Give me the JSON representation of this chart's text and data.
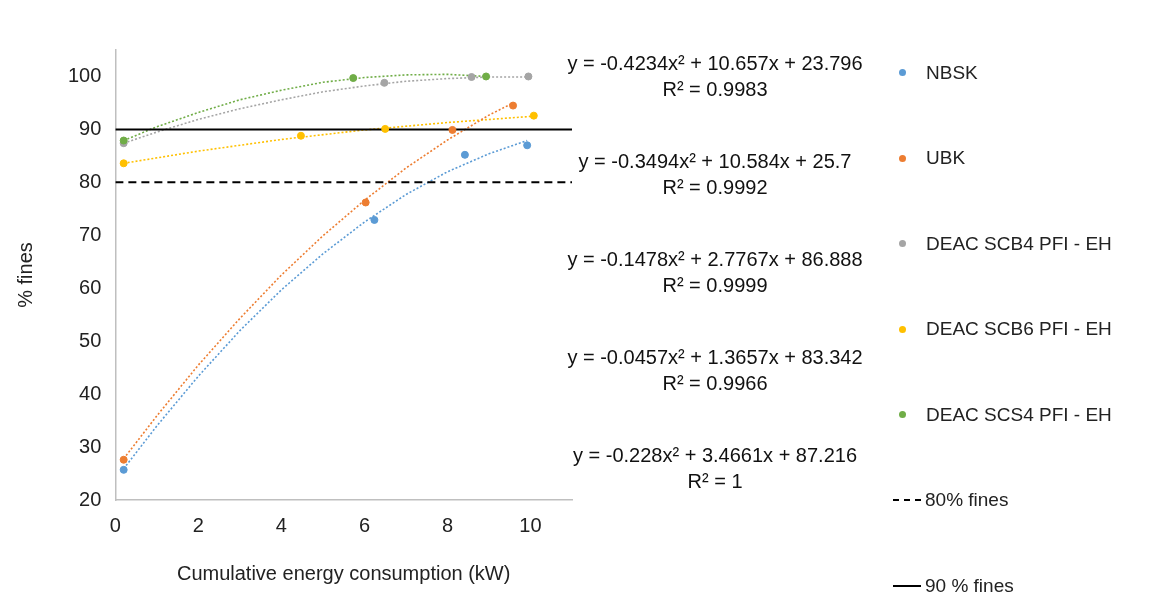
{
  "chart_data": {
    "type": "scatter",
    "xlabel": "Cumulative energy consumption (kW)",
    "ylabel": "% fines",
    "xlim": [
      0,
      11
    ],
    "xticks": [
      0,
      2,
      4,
      6,
      8,
      10
    ],
    "ylim": [
      20,
      105
    ],
    "yticks": [
      20,
      30,
      40,
      50,
      60,
      70,
      80,
      90,
      100
    ],
    "grid": false,
    "legend": "right",
    "marker": "circle",
    "series": [
      {
        "name": "NBSK",
        "color": "#5b9bd5",
        "x": [
          0.2,
          6.24,
          8.42,
          9.92
        ],
        "values": [
          25.7,
          72.9,
          85.2,
          87.0
        ]
      },
      {
        "name": "UBK",
        "color": "#ed7d31",
        "x": [
          0.2,
          6.03,
          8.12,
          9.58
        ],
        "values": [
          27.6,
          76.2,
          89.9,
          94.5
        ]
      },
      {
        "name": "DEAC SCB4 PFI - EH",
        "color": "#a5a5a5",
        "x": [
          0.2,
          6.48,
          8.58,
          9.95
        ],
        "values": [
          87.4,
          98.8,
          99.9,
          100
        ]
      },
      {
        "name": "DEAC SCB6 PFI - EH",
        "color": "#ffc000",
        "x": [
          0.2,
          4.47,
          6.5,
          10.08
        ],
        "values": [
          83.6,
          88.8,
          90.1,
          92.6
        ]
      },
      {
        "name": "DEAC SCS4 PFI - EH",
        "color": "#70ad47",
        "x": [
          0.2,
          5.73,
          8.93
        ],
        "values": [
          87.9,
          99.7,
          100
        ]
      },
      {
        "type": "line",
        "color": "#5b9bd5",
        "line_style": "dotted",
        "marker": "none",
        "x": [
          0.2,
          1,
          2,
          3,
          4,
          5,
          6,
          7,
          8,
          9,
          9.92
        ],
        "values": [
          25.9,
          34,
          43.4,
          52,
          59.7,
          66.5,
          72.5,
          77.7,
          82,
          85.4,
          87.9
        ]
      },
      {
        "type": "line",
        "color": "#ed7d31",
        "line_style": "dotted",
        "marker": "none",
        "x": [
          0.2,
          1,
          2,
          3,
          4,
          5,
          6,
          7,
          8,
          9,
          9.58
        ],
        "values": [
          27.8,
          35.9,
          45.5,
          54.3,
          62.5,
          69.9,
          76.6,
          82.7,
          88,
          92.7,
          95
        ]
      },
      {
        "type": "line",
        "color": "#a5a5a5",
        "line_style": "dotted",
        "marker": "none",
        "x": [
          0.2,
          1,
          2,
          3,
          4,
          5,
          6,
          7,
          8,
          9,
          9.95
        ],
        "values": [
          87.4,
          89.5,
          91.9,
          93.9,
          95.6,
          97.1,
          98.2,
          99.1,
          99.6,
          99.9,
          99.9
        ]
      },
      {
        "type": "line",
        "color": "#ffc000",
        "line_style": "dotted",
        "marker": "none",
        "x": [
          0.2,
          2,
          4,
          6,
          8,
          10.08
        ],
        "values": [
          83.6,
          85.9,
          88.1,
          89.9,
          91.3,
          92.5
        ]
      },
      {
        "type": "line",
        "color": "#70ad47",
        "line_style": "dotted",
        "marker": "none",
        "x": [
          0.2,
          1,
          2,
          3,
          4,
          5,
          6,
          7,
          8,
          8.93
        ],
        "values": [
          87.9,
          90.5,
          93.2,
          95.6,
          97.4,
          98.9,
          99.8,
          100.3,
          100.4,
          100
        ]
      }
    ],
    "ref_lines": [
      {
        "axis": "y",
        "value": 80,
        "label": "80% fines",
        "color": "#000000",
        "line_style": "dashed"
      },
      {
        "axis": "y",
        "value": 90,
        "label": "90 % fines",
        "color": "#000000",
        "line_style": "solid"
      }
    ],
    "annotations": [
      "y = -0.4234x² + 10.657x + 23.796",
      "R² = 0.9983",
      "y = -0.3494x² + 10.584x + 25.7",
      "R² = 0.9992",
      "y = -0.1478x² + 2.7767x + 86.888",
      "R² = 0.9999",
      "y = -0.0457x² + 1.3657x + 83.342",
      "R² = 0.9966",
      "y = -0.228x² + 3.4661x + 87.216",
      "R² = 1"
    ]
  }
}
